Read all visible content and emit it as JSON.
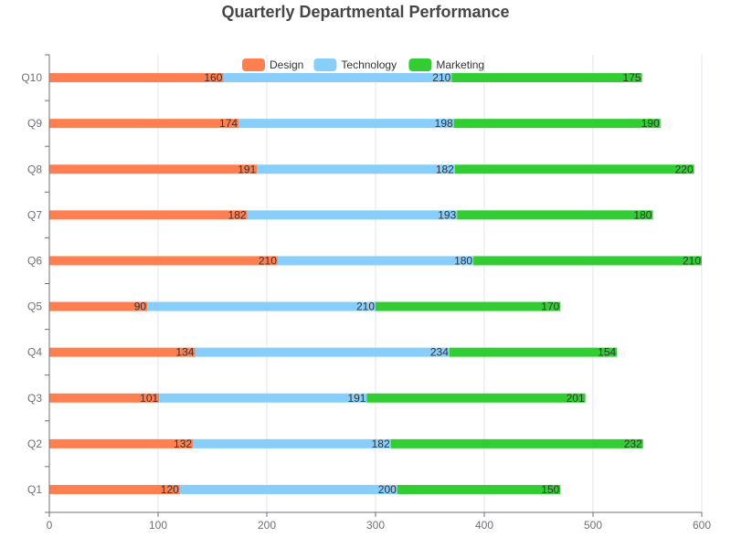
{
  "chart_data": {
    "type": "bar",
    "orientation": "horizontal",
    "stacked": true,
    "title": "Quarterly Departmental Performance",
    "categories": [
      "Q1",
      "Q2",
      "Q3",
      "Q4",
      "Q5",
      "Q6",
      "Q7",
      "Q8",
      "Q9",
      "Q10"
    ],
    "series": [
      {
        "name": "Design",
        "color": "#ff7f50",
        "values": [
          120,
          132,
          101,
          134,
          90,
          210,
          182,
          191,
          174,
          160
        ]
      },
      {
        "name": "Technology",
        "color": "#87cefa",
        "values": [
          200,
          182,
          191,
          234,
          210,
          180,
          193,
          182,
          198,
          210
        ]
      },
      {
        "name": "Marketing",
        "color": "#32cd32",
        "values": [
          150,
          232,
          201,
          154,
          170,
          210,
          180,
          220,
          190,
          175
        ]
      }
    ],
    "xlim": [
      0,
      600
    ],
    "xticks": [
      0,
      100,
      200,
      300,
      400,
      500,
      600
    ],
    "xlabel": "",
    "ylabel": "",
    "grid": "vertical",
    "legend": "top-center",
    "data_labels": "inside-end"
  }
}
